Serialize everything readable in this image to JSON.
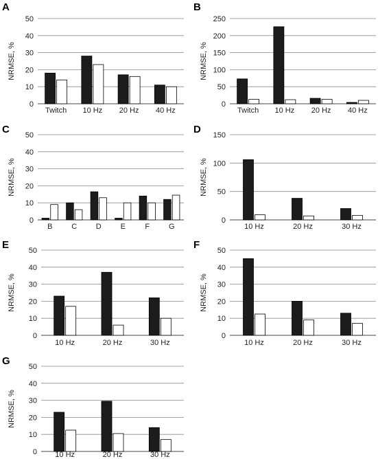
{
  "chart_data": [
    {
      "panel": "A",
      "type": "bar",
      "ylabel": "NRMSE, %",
      "ylim": [
        0,
        50
      ],
      "yticks": [
        0,
        10,
        20,
        30,
        40,
        50
      ],
      "categories": [
        "Twitch",
        "10 Hz",
        "20 Hz",
        "40 Hz"
      ],
      "series": [
        {
          "values": [
            18,
            28,
            17,
            11
          ],
          "color": "#1c1c1c"
        },
        {
          "values": [
            14,
            23,
            16,
            10
          ],
          "color": "#ffffff"
        }
      ],
      "grid": true
    },
    {
      "panel": "B",
      "type": "bar",
      "ylabel": "NRMSE, %",
      "ylim": [
        0,
        250
      ],
      "yticks": [
        0,
        50,
        100,
        150,
        200,
        250
      ],
      "categories": [
        "Twitch",
        "10 Hz",
        "20 Hz",
        "40 Hz"
      ],
      "series": [
        {
          "values": [
            73,
            226,
            16,
            4
          ],
          "color": "#1c1c1c"
        },
        {
          "values": [
            13,
            12,
            13,
            10
          ],
          "color": "#ffffff"
        }
      ],
      "grid": true
    },
    {
      "panel": "C",
      "type": "bar",
      "ylabel": "NRMSE, %",
      "ylim": [
        0,
        50
      ],
      "yticks": [
        0,
        10,
        20,
        30,
        40,
        50
      ],
      "categories": [
        "B",
        "C",
        "D",
        "E",
        "F",
        "G"
      ],
      "series": [
        {
          "values": [
            1,
            10,
            16.5,
            1,
            14,
            12
          ],
          "color": "#1c1c1c"
        },
        {
          "values": [
            9,
            6,
            13,
            10,
            10,
            14.5
          ],
          "color": "#ffffff"
        }
      ],
      "grid": true
    },
    {
      "panel": "D",
      "type": "bar",
      "ylabel": "NRMSE, %",
      "ylim": [
        0,
        150
      ],
      "yticks": [
        0,
        50,
        100,
        150
      ],
      "categories": [
        "10 Hz",
        "20 Hz",
        "30 Hz"
      ],
      "series": [
        {
          "values": [
            106,
            38,
            20
          ],
          "color": "#1c1c1c"
        },
        {
          "values": [
            9,
            7,
            8
          ],
          "color": "#ffffff"
        }
      ],
      "grid": true
    },
    {
      "panel": "E",
      "type": "bar",
      "ylabel": "NRMSE, %",
      "ylim": [
        0,
        50
      ],
      "yticks": [
        0,
        10,
        20,
        30,
        40,
        50
      ],
      "categories": [
        "10 Hz",
        "20 Hz",
        "30 Hz"
      ],
      "series": [
        {
          "values": [
            23,
            37,
            22
          ],
          "color": "#1c1c1c"
        },
        {
          "values": [
            17,
            6,
            10
          ],
          "color": "#ffffff"
        }
      ],
      "grid": true
    },
    {
      "panel": "F",
      "type": "bar",
      "ylabel": "NRMSE, %",
      "ylim": [
        0,
        50
      ],
      "yticks": [
        0,
        10,
        20,
        30,
        40,
        50
      ],
      "categories": [
        "10 Hz",
        "20 Hz",
        "30 Hz"
      ],
      "series": [
        {
          "values": [
            45,
            20,
            13
          ],
          "color": "#1c1c1c"
        },
        {
          "values": [
            12.5,
            9,
            7
          ],
          "color": "#ffffff"
        }
      ],
      "grid": true
    },
    {
      "panel": "G",
      "type": "bar",
      "ylabel": "NRMSE, %",
      "ylim": [
        0,
        50
      ],
      "yticks": [
        0,
        10,
        20,
        30,
        40,
        50
      ],
      "categories": [
        "10 Hz",
        "20 Hz",
        "30 Hz"
      ],
      "series": [
        {
          "values": [
            23,
            29.5,
            14
          ],
          "color": "#1c1c1c"
        },
        {
          "values": [
            12.5,
            10.5,
            7
          ],
          "color": "#ffffff"
        }
      ],
      "grid": true
    }
  ]
}
